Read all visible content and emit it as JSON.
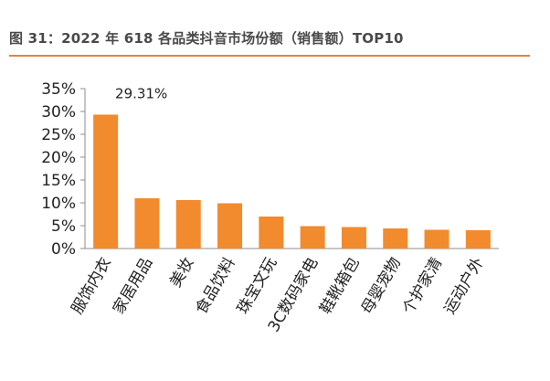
{
  "header": {
    "title": "图 31：2022 年 618 各品类抖音市场份额（销售额）TOP10",
    "rule_color": "#e8823a"
  },
  "chart_data": {
    "type": "bar",
    "categories": [
      "服饰内衣",
      "家居用品",
      "美妆",
      "食品饮料",
      "珠宝文玩",
      "3C数码家电",
      "鞋靴箱包",
      "母婴宠物",
      "个护家清",
      "运动户外"
    ],
    "values": [
      29.31,
      11.0,
      10.6,
      9.9,
      7.0,
      4.9,
      4.7,
      4.4,
      4.1,
      4.0
    ],
    "value_labels": [
      {
        "index": 0,
        "text": "29.31%"
      }
    ],
    "ylim": [
      0,
      35
    ],
    "yticks": [
      0,
      5,
      10,
      15,
      20,
      25,
      30,
      35
    ],
    "ytick_labels": [
      "0%",
      "5%",
      "10%",
      "15%",
      "20%",
      "25%",
      "30%",
      "35%"
    ],
    "xlabel": "",
    "ylabel": "",
    "bar_color": "#f28a2e",
    "grid": false,
    "legend": "none"
  }
}
